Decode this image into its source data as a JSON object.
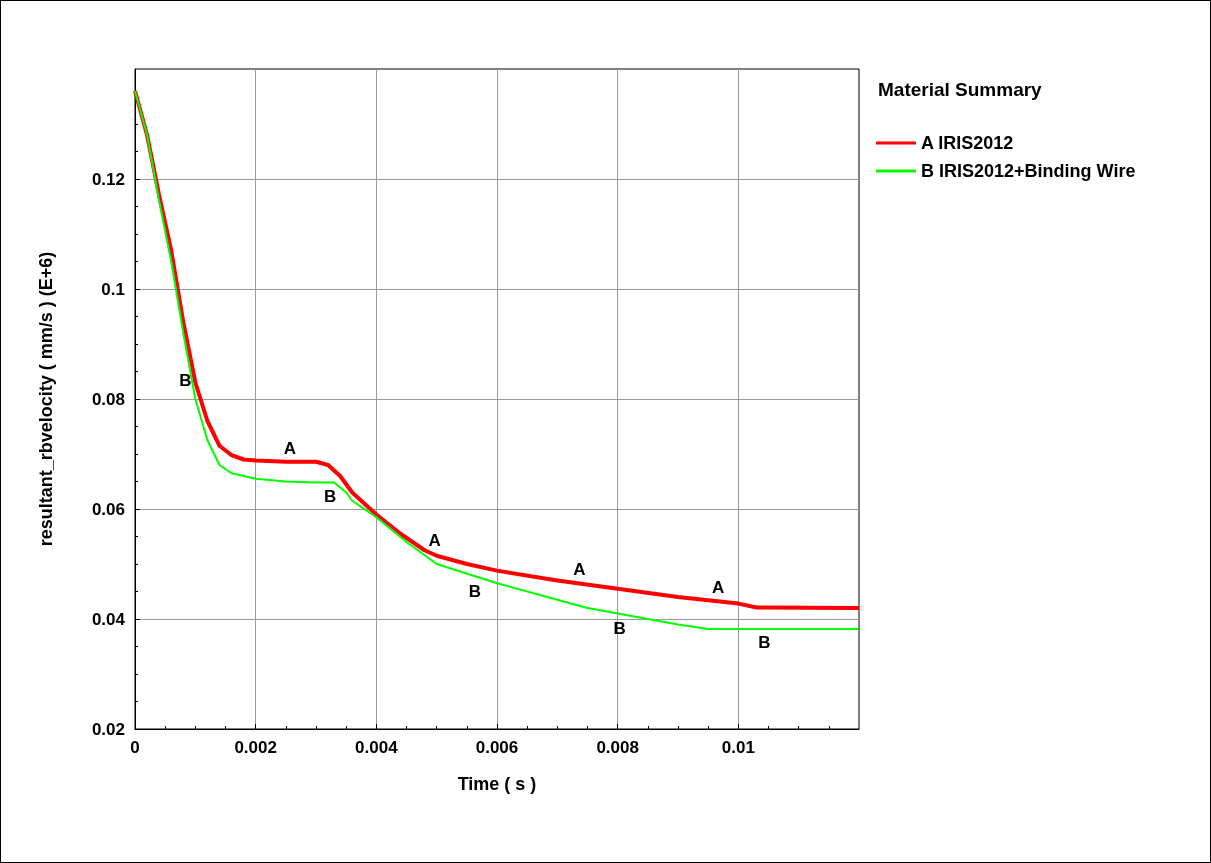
{
  "chart_data": {
    "type": "line",
    "xlabel": "Time ( s )",
    "ylabel": "resultant_rbvelocity ( mm/s ) (E+6)",
    "legend_title": "Material Summary",
    "xlim": [
      0,
      0.012
    ],
    "ylim": [
      0.02,
      0.14
    ],
    "xticks": [
      0,
      0.002,
      0.004,
      0.006,
      0.008,
      0.01
    ],
    "yticks": [
      0.02,
      0.04,
      0.06,
      0.08,
      0.1,
      0.12
    ],
    "grid": true,
    "legend": "right",
    "marker": "none",
    "line_style": "solid",
    "series": [
      {
        "name": "A IRIS2012",
        "color": "#ff0000",
        "x": [
          0,
          0.0002,
          0.0004,
          0.0006,
          0.0008,
          0.001,
          0.0012,
          0.0014,
          0.0016,
          0.0018,
          0.002,
          0.0025,
          0.003,
          0.0032,
          0.0034,
          0.0036,
          0.004,
          0.0044,
          0.0048,
          0.005,
          0.0055,
          0.006,
          0.007,
          0.008,
          0.009,
          0.01,
          0.0103,
          0.012
        ],
        "values": [
          0.136,
          0.128,
          0.117,
          0.107,
          0.094,
          0.083,
          0.076,
          0.0715,
          0.0698,
          0.069,
          0.0688,
          0.0686,
          0.0686,
          0.068,
          0.066,
          0.063,
          0.059,
          0.0555,
          0.0525,
          0.0515,
          0.05,
          0.0488,
          0.047,
          0.0455,
          0.044,
          0.0428,
          0.0421,
          0.042
        ]
      },
      {
        "name": "B IRIS2012+Binding Wire",
        "color": "#00ff00",
        "x": [
          0,
          0.0002,
          0.0004,
          0.0006,
          0.0008,
          0.001,
          0.0012,
          0.0014,
          0.0016,
          0.0018,
          0.002,
          0.0025,
          0.003,
          0.0033,
          0.0035,
          0.0036,
          0.004,
          0.0045,
          0.005,
          0.006,
          0.007,
          0.0075,
          0.008,
          0.009,
          0.0095,
          0.012
        ],
        "values": [
          0.136,
          0.128,
          0.116,
          0.105,
          0.092,
          0.08,
          0.0725,
          0.068,
          0.0665,
          0.066,
          0.0655,
          0.065,
          0.0648,
          0.0648,
          0.063,
          0.0615,
          0.0585,
          0.054,
          0.05,
          0.0465,
          0.0435,
          0.042,
          0.041,
          0.039,
          0.0382,
          0.0382
        ]
      }
    ],
    "annotations": [
      {
        "text": "A",
        "x": 0.0025,
        "y": 0.0686
      },
      {
        "text": "A",
        "x": 0.0049,
        "y": 0.052
      },
      {
        "text": "A",
        "x": 0.0073,
        "y": 0.0466
      },
      {
        "text": "A",
        "x": 0.0096,
        "y": 0.0433
      },
      {
        "text": "B",
        "x": 0.0009,
        "y": 0.086
      },
      {
        "text": "B",
        "x": 0.0033,
        "y": 0.0648
      },
      {
        "text": "B",
        "x": 0.0057,
        "y": 0.0476
      },
      {
        "text": "B",
        "x": 0.0081,
        "y": 0.0408
      },
      {
        "text": "B",
        "x": 0.0105,
        "y": 0.0382
      }
    ]
  }
}
